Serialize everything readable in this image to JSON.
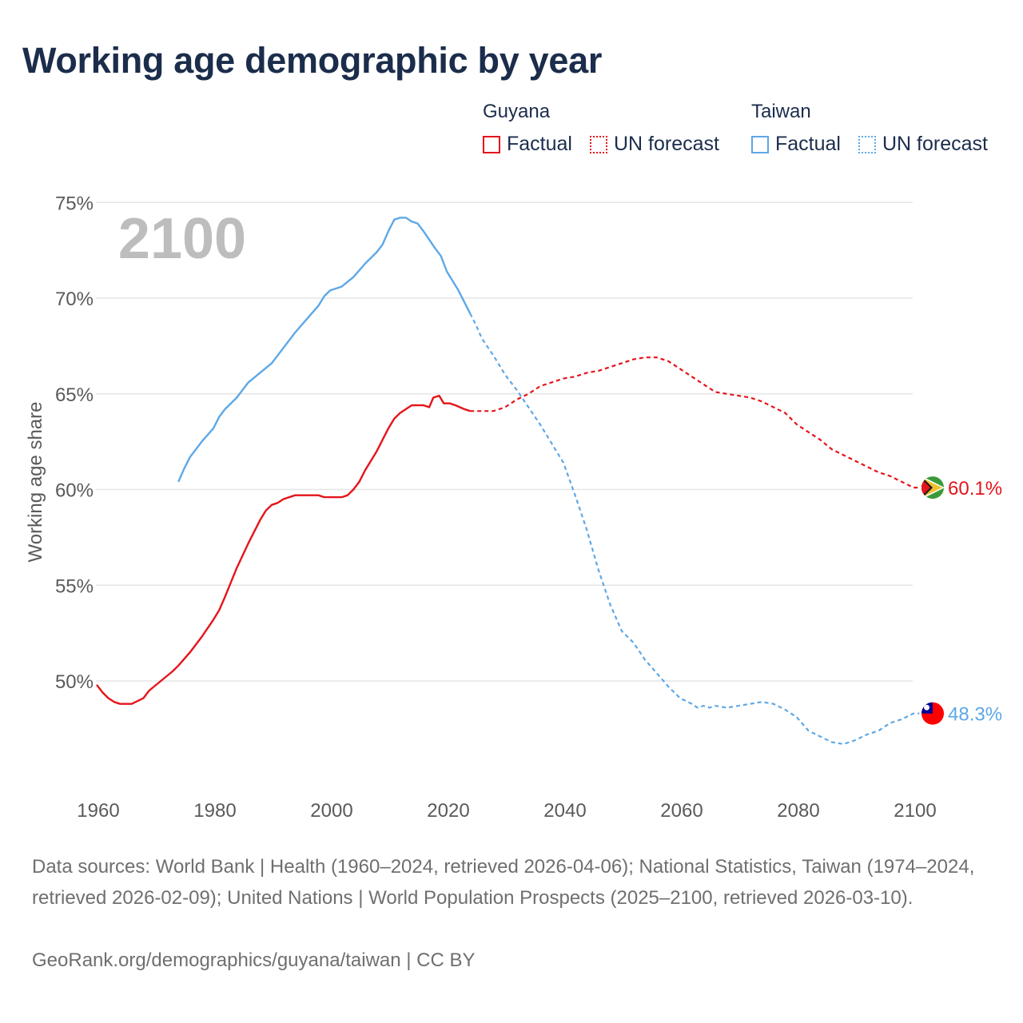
{
  "title": "Working age demographic by year",
  "legend": {
    "groups": [
      {
        "name": "Guyana",
        "color": "#e5141b",
        "factual_label": "Factual",
        "forecast_label": "UN forecast"
      },
      {
        "name": "Taiwan",
        "color": "#5ea8e6",
        "factual_label": "Factual",
        "forecast_label": "UN forecast"
      }
    ]
  },
  "chart_data": {
    "type": "line",
    "title": "Working age demographic by year",
    "xlabel": "",
    "ylabel": "Working age share",
    "year_watermark": "2100",
    "xlim": [
      1960,
      2103
    ],
    "ylim": [
      45,
      75
    ],
    "x_ticks": [
      "1960",
      "1980",
      "2000",
      "2020",
      "2040",
      "2060",
      "2080",
      "2100"
    ],
    "y_ticks": [
      "75%",
      "70%",
      "65%",
      "60%",
      "55%",
      "50%"
    ],
    "grid": true,
    "series": [
      {
        "name": "Guyana",
        "color": "#e5141b",
        "end_label": "60.1%",
        "factual": [
          [
            1960,
            49.8
          ],
          [
            1961,
            49.4
          ],
          [
            1962,
            49.1
          ],
          [
            1963,
            48.9
          ],
          [
            1964,
            48.8
          ],
          [
            1966,
            48.8
          ],
          [
            1968,
            49.1
          ],
          [
            1969,
            49.5
          ],
          [
            1971,
            50.0
          ],
          [
            1973,
            50.5
          ],
          [
            1974,
            50.8
          ],
          [
            1976,
            51.5
          ],
          [
            1978,
            52.3
          ],
          [
            1980,
            53.2
          ],
          [
            1981,
            53.7
          ],
          [
            1982,
            54.4
          ],
          [
            1984,
            55.9
          ],
          [
            1986,
            57.2
          ],
          [
            1988,
            58.4
          ],
          [
            1989,
            58.9
          ],
          [
            1990,
            59.2
          ],
          [
            1991,
            59.3
          ],
          [
            1992,
            59.5
          ],
          [
            1994,
            59.7
          ],
          [
            1996,
            59.7
          ],
          [
            1998,
            59.7
          ],
          [
            1999,
            59.6
          ],
          [
            2000,
            59.6
          ],
          [
            2002,
            59.6
          ],
          [
            2003,
            59.7
          ],
          [
            2004,
            60.0
          ],
          [
            2005,
            60.4
          ],
          [
            2006,
            61.0
          ],
          [
            2008,
            62.0
          ],
          [
            2009,
            62.6
          ],
          [
            2010,
            63.2
          ],
          [
            2011,
            63.7
          ],
          [
            2012,
            64.0
          ],
          [
            2013,
            64.2
          ],
          [
            2014,
            64.4
          ],
          [
            2015,
            64.4
          ],
          [
            2016,
            64.4
          ],
          [
            2017,
            64.3
          ],
          [
            2017.7,
            64.8
          ],
          [
            2018.7,
            64.9
          ],
          [
            2019.5,
            64.5
          ],
          [
            2020.5,
            64.5
          ],
          [
            2021.5,
            64.4
          ],
          [
            2023,
            64.2
          ],
          [
            2024,
            64.1
          ]
        ],
        "forecast": [
          [
            2024,
            64.1
          ],
          [
            2025,
            64.1
          ],
          [
            2027,
            64.1
          ],
          [
            2028,
            64.1
          ],
          [
            2030,
            64.3
          ],
          [
            2032,
            64.7
          ],
          [
            2034,
            65.0
          ],
          [
            2036,
            65.4
          ],
          [
            2038,
            65.6
          ],
          [
            2040,
            65.8
          ],
          [
            2042,
            65.9
          ],
          [
            2044,
            66.1
          ],
          [
            2046,
            66.2
          ],
          [
            2048,
            66.4
          ],
          [
            2050,
            66.6
          ],
          [
            2052,
            66.8
          ],
          [
            2054,
            66.9
          ],
          [
            2056,
            66.9
          ],
          [
            2058,
            66.7
          ],
          [
            2060,
            66.3
          ],
          [
            2062,
            65.9
          ],
          [
            2064,
            65.5
          ],
          [
            2066,
            65.1
          ],
          [
            2068,
            65.0
          ],
          [
            2070,
            64.9
          ],
          [
            2072,
            64.8
          ],
          [
            2074,
            64.6
          ],
          [
            2076,
            64.3
          ],
          [
            2078,
            64.0
          ],
          [
            2080,
            63.4
          ],
          [
            2082,
            63.0
          ],
          [
            2084,
            62.6
          ],
          [
            2086,
            62.1
          ],
          [
            2088,
            61.8
          ],
          [
            2090,
            61.5
          ],
          [
            2092,
            61.2
          ],
          [
            2094,
            60.9
          ],
          [
            2096,
            60.7
          ],
          [
            2098,
            60.4
          ],
          [
            2100,
            60.1
          ],
          [
            2101,
            60.1
          ]
        ]
      },
      {
        "name": "Taiwan",
        "color": "#5ea8e6",
        "end_label": "48.3%",
        "factual": [
          [
            1974,
            60.4
          ],
          [
            1975,
            61.1
          ],
          [
            1976,
            61.7
          ],
          [
            1978,
            62.5
          ],
          [
            1980,
            63.2
          ],
          [
            1981,
            63.8
          ],
          [
            1982,
            64.2
          ],
          [
            1984,
            64.8
          ],
          [
            1986,
            65.6
          ],
          [
            1988,
            66.1
          ],
          [
            1990,
            66.6
          ],
          [
            1991,
            67.0
          ],
          [
            1992,
            67.4
          ],
          [
            1994,
            68.2
          ],
          [
            1996,
            68.9
          ],
          [
            1998,
            69.6
          ],
          [
            1999,
            70.1
          ],
          [
            2000,
            70.4
          ],
          [
            2001,
            70.5
          ],
          [
            2002,
            70.6
          ],
          [
            2004,
            71.1
          ],
          [
            2006,
            71.8
          ],
          [
            2008,
            72.4
          ],
          [
            2009,
            72.8
          ],
          [
            2010,
            73.5
          ],
          [
            2011,
            74.1
          ],
          [
            2012,
            74.2
          ],
          [
            2013,
            74.2
          ],
          [
            2014,
            74.0
          ],
          [
            2015,
            73.9
          ],
          [
            2016,
            73.5
          ],
          [
            2018,
            72.6
          ],
          [
            2019,
            72.2
          ],
          [
            2020,
            71.4
          ],
          [
            2021,
            70.9
          ],
          [
            2022,
            70.4
          ],
          [
            2023,
            69.8
          ],
          [
            2024,
            69.2
          ]
        ],
        "forecast": [
          [
            2024,
            69.2
          ],
          [
            2025,
            68.6
          ],
          [
            2026,
            67.9
          ],
          [
            2028,
            67.0
          ],
          [
            2030,
            66.0
          ],
          [
            2032,
            65.2
          ],
          [
            2034,
            64.3
          ],
          [
            2036,
            63.4
          ],
          [
            2038,
            62.4
          ],
          [
            2040,
            61.4
          ],
          [
            2042,
            59.7
          ],
          [
            2044,
            57.9
          ],
          [
            2046,
            55.8
          ],
          [
            2048,
            54.0
          ],
          [
            2050,
            52.6
          ],
          [
            2052,
            52.0
          ],
          [
            2054,
            51.1
          ],
          [
            2056,
            50.4
          ],
          [
            2058,
            49.7
          ],
          [
            2060,
            49.1
          ],
          [
            2062,
            48.8
          ],
          [
            2063,
            48.6
          ],
          [
            2064,
            48.7
          ],
          [
            2065,
            48.6
          ],
          [
            2066,
            48.7
          ],
          [
            2068,
            48.6
          ],
          [
            2070,
            48.7
          ],
          [
            2072,
            48.8
          ],
          [
            2074,
            48.9
          ],
          [
            2076,
            48.8
          ],
          [
            2078,
            48.5
          ],
          [
            2080,
            48.1
          ],
          [
            2082,
            47.4
          ],
          [
            2084,
            47.1
          ],
          [
            2086,
            46.8
          ],
          [
            2088,
            46.7
          ],
          [
            2090,
            46.9
          ],
          [
            2092,
            47.2
          ],
          [
            2094,
            47.4
          ],
          [
            2096,
            47.8
          ],
          [
            2098,
            48.0
          ],
          [
            2100,
            48.3
          ],
          [
            2101,
            48.3
          ]
        ]
      }
    ]
  },
  "footer": {
    "sources": "Data sources: World Bank | Health (1960–2024, retrieved 2026-04-06); National Statistics, Taiwan (1974–2024, retrieved 2026-02-09); United Nations | World Population Prospects (2025–2100, retrieved 2026-03-10).",
    "credit": "GeoRank.org/demographics/guyana/taiwan | CC BY"
  }
}
